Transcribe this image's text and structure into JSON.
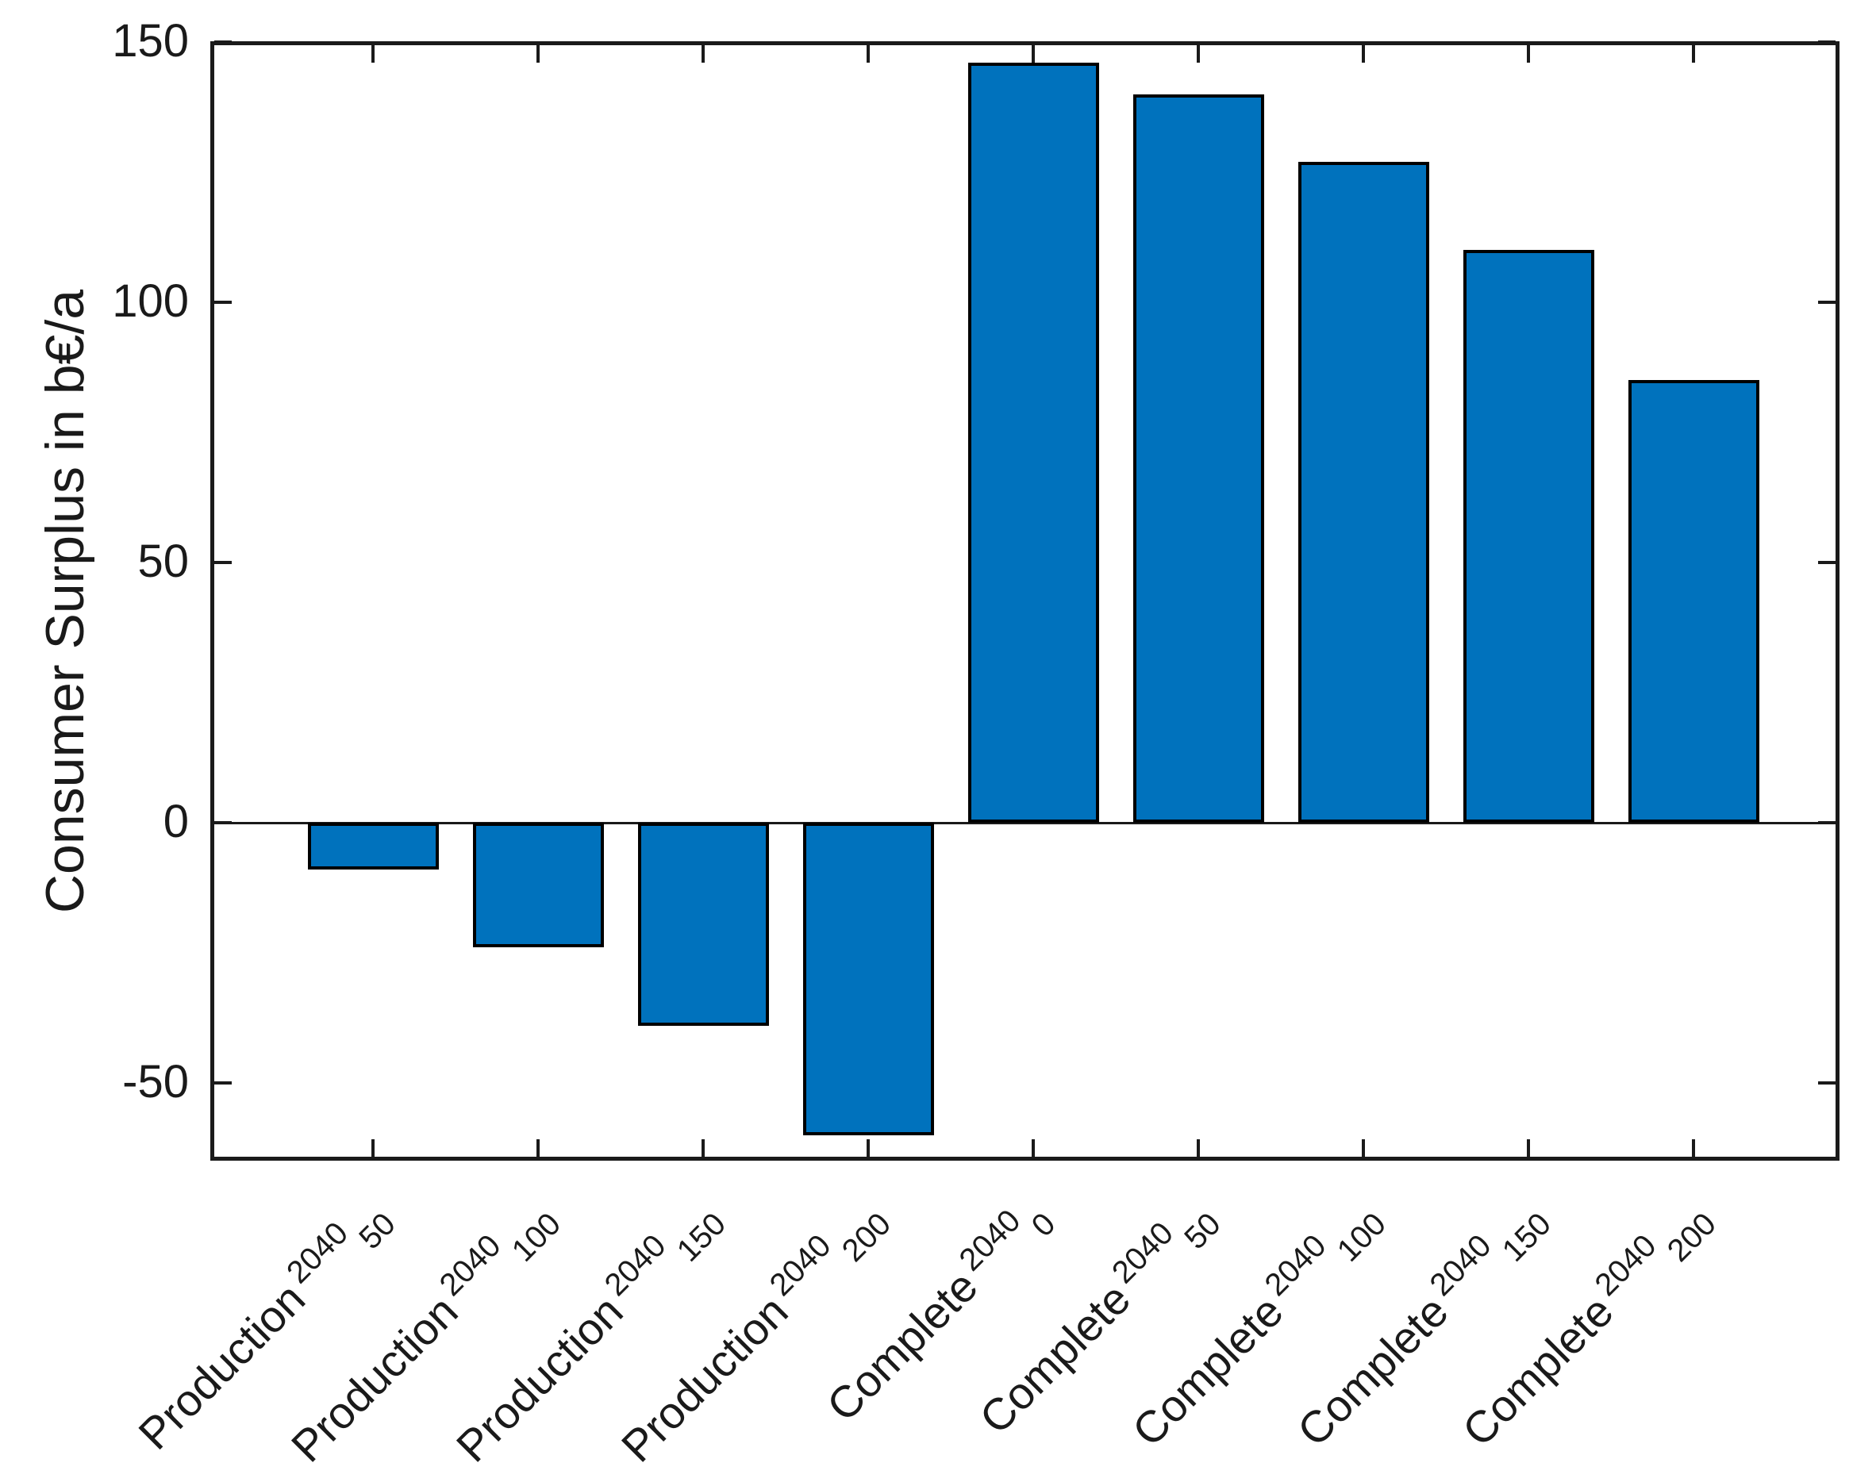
{
  "chart_data": {
    "type": "bar",
    "title": "",
    "xlabel": "",
    "ylabel": "Consumer Surplus in b€/a",
    "categories": [
      {
        "base": "Production",
        "sup": "2040",
        "sub": "50"
      },
      {
        "base": "Production",
        "sup": "2040",
        "sub": "100"
      },
      {
        "base": "Production",
        "sup": "2040",
        "sub": "150"
      },
      {
        "base": "Production",
        "sup": "2040",
        "sub": "200"
      },
      {
        "base": "Complete",
        "sup": "2040",
        "sub": "0"
      },
      {
        "base": "Complete",
        "sup": "2040",
        "sub": "50"
      },
      {
        "base": "Complete",
        "sup": "2040",
        "sub": "100"
      },
      {
        "base": "Complete",
        "sup": "2040",
        "sub": "150"
      },
      {
        "base": "Complete",
        "sup": "2040",
        "sub": "200"
      }
    ],
    "values": [
      -9,
      -24,
      -39,
      -60,
      146,
      140,
      127,
      110,
      85
    ],
    "yticks": [
      150,
      100,
      50,
      0,
      -50
    ],
    "ylim": [
      -65,
      150
    ],
    "bar_color": "#0072BD",
    "bar_edge_color": "#000000",
    "axis_color": "#1a1a1a",
    "grid": false,
    "legend": null,
    "tick_direction": "in",
    "x_label_rotation_deg": 45
  }
}
